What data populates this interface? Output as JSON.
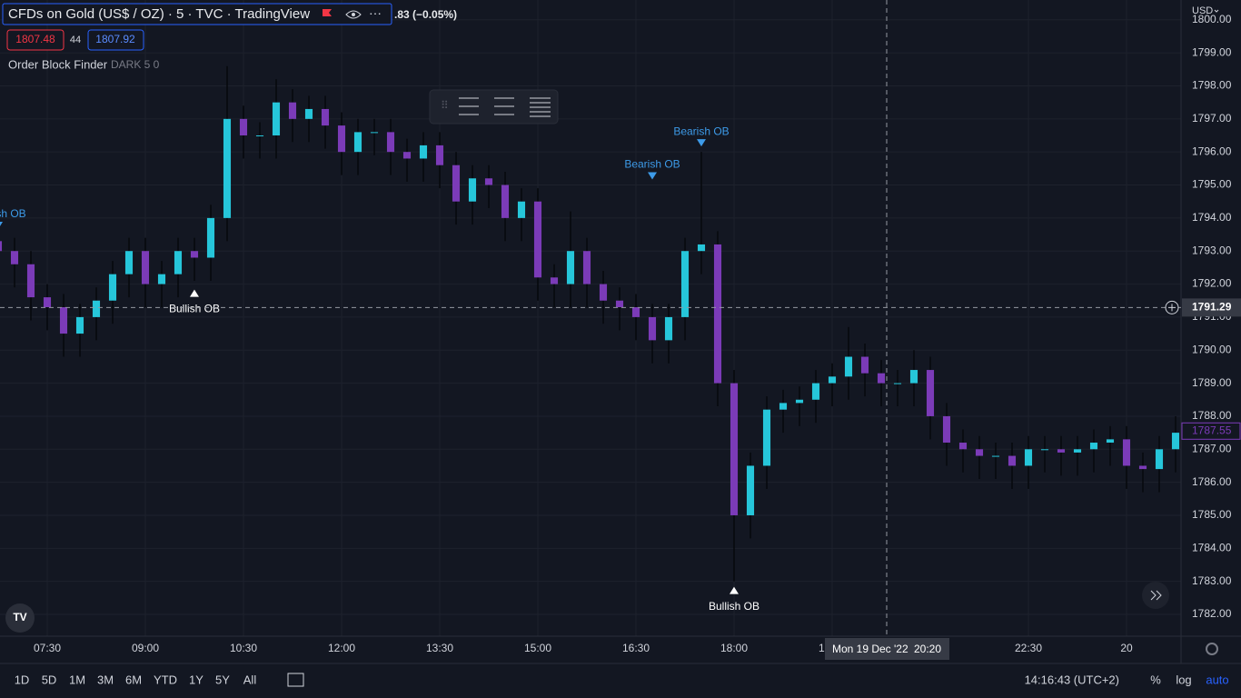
{
  "header": {
    "title": "CFDs on Gold (US$ / OZ) · 5 · TVC · TradingView",
    "change": ".83 (−0.05%)",
    "sell_price": 1807.48,
    "spread": 44,
    "buy_price": 1807.92,
    "currency": "USD"
  },
  "indicator": {
    "name": "Order Block Finder",
    "params": "DARK 5 0"
  },
  "chart_data": {
    "type": "candlestick",
    "grid": true,
    "up_color": "#26c6da",
    "down_color": "#7b3bb8",
    "wick_color": "#06080c",
    "xlim": [
      406.67,
      1490
    ],
    "ylim": [
      1781.34,
      1800.6
    ],
    "xticks": [
      {
        "value": 450,
        "label": "07:30"
      },
      {
        "value": 540,
        "label": "09:00"
      },
      {
        "value": 630,
        "label": "10:30"
      },
      {
        "value": 720,
        "label": "12:00"
      },
      {
        "value": 810,
        "label": "13:30"
      },
      {
        "value": 900,
        "label": "15:00"
      },
      {
        "value": 990,
        "label": "16:30"
      },
      {
        "value": 1080,
        "label": "18:00"
      },
      {
        "value": 1170,
        "label": "19:30"
      },
      {
        "value": 1350,
        "label": "22:30"
      },
      {
        "value": 1440,
        "label": "20"
      }
    ],
    "yticks": [
      {
        "value": 1782,
        "label": "1782.00"
      },
      {
        "value": 1783,
        "label": "1783.00"
      },
      {
        "value": 1784,
        "label": "1784.00"
      },
      {
        "value": 1785,
        "label": "1785.00"
      },
      {
        "value": 1786,
        "label": "1786.00"
      },
      {
        "value": 1787,
        "label": "1787.00"
      },
      {
        "value": 1788,
        "label": "1788.00"
      },
      {
        "value": 1789,
        "label": "1789.00"
      },
      {
        "value": 1790,
        "label": "1790.00"
      },
      {
        "value": 1791,
        "label": "1791.00"
      },
      {
        "value": 1792,
        "label": "1792.00"
      },
      {
        "value": 1793,
        "label": "1793.00"
      },
      {
        "value": 1794,
        "label": "1794.00"
      },
      {
        "value": 1795,
        "label": "1795.00"
      },
      {
        "value": 1796,
        "label": "1796.00"
      },
      {
        "value": 1797,
        "label": "1797.00"
      },
      {
        "value": 1798,
        "label": "1798.00"
      },
      {
        "value": 1799,
        "label": "1799.00"
      },
      {
        "value": 1800,
        "label": "1800.00"
      }
    ],
    "x": [
      405,
      420,
      435,
      450,
      465,
      480,
      495,
      510,
      525,
      540,
      555,
      570,
      585,
      600,
      615,
      630,
      645,
      660,
      675,
      690,
      705,
      720,
      735,
      750,
      765,
      780,
      795,
      810,
      825,
      840,
      855,
      870,
      885,
      900,
      915,
      930,
      945,
      960,
      975,
      990,
      1005,
      1020,
      1035,
      1050,
      1065,
      1080,
      1095,
      1110,
      1125,
      1140,
      1155,
      1170,
      1185,
      1200,
      1215,
      1230,
      1245,
      1260,
      1275,
      1290,
      1305,
      1320,
      1335,
      1350,
      1365,
      1380,
      1395,
      1410,
      1425,
      1440,
      1455,
      1470,
      1485
    ],
    "open": [
      1793.3,
      1793.0,
      1792.6,
      1791.6,
      1791.3,
      1790.5,
      1791.0,
      1791.5,
      1792.3,
      1793.0,
      1792.0,
      1792.3,
      1793.0,
      1792.8,
      1794.0,
      1797.0,
      1796.5,
      1796.5,
      1797.5,
      1797.0,
      1797.3,
      1796.8,
      1796.0,
      1796.6,
      1796.6,
      1796.0,
      1795.8,
      1796.2,
      1795.6,
      1794.5,
      1795.2,
      1795.0,
      1794.0,
      1794.5,
      1792.2,
      1792.0,
      1793.0,
      1792.0,
      1791.5,
      1791.3,
      1791.0,
      1790.3,
      1791.0,
      1793.0,
      1793.2,
      1789.0,
      1785.0,
      1786.5,
      1788.2,
      1788.4,
      1788.5,
      1789.0,
      1789.2,
      1789.8,
      1789.3,
      1789.0,
      1789.0,
      1789.4,
      1788.0,
      1787.2,
      1787.0,
      1786.8,
      1786.8,
      1786.5,
      1787.0,
      1787.0,
      1786.9,
      1787.0,
      1787.2,
      1787.3,
      1786.5,
      1786.4,
      1787.0
    ],
    "high": [
      1793.7,
      1793.4,
      1793.0,
      1792.0,
      1791.7,
      1791.4,
      1791.9,
      1792.7,
      1793.4,
      1793.4,
      1792.7,
      1793.4,
      1793.4,
      1794.4,
      1798.6,
      1797.4,
      1796.9,
      1798.2,
      1797.9,
      1797.7,
      1797.7,
      1797.2,
      1797.0,
      1797.0,
      1797.0,
      1796.4,
      1796.6,
      1796.6,
      1796.0,
      1795.6,
      1795.6,
      1795.4,
      1794.9,
      1794.9,
      1792.6,
      1794.2,
      1793.4,
      1792.4,
      1791.9,
      1791.7,
      1791.4,
      1791.4,
      1793.4,
      1796.0,
      1793.6,
      1789.4,
      1786.9,
      1788.6,
      1788.8,
      1788.9,
      1789.4,
      1789.6,
      1790.7,
      1790.2,
      1789.7,
      1789.4,
      1790.0,
      1789.8,
      1788.4,
      1787.6,
      1787.4,
      1787.2,
      1787.2,
      1787.4,
      1787.4,
      1787.4,
      1787.4,
      1787.6,
      1787.7,
      1787.7,
      1786.9,
      1787.4,
      1788.0
    ],
    "low": [
      1792.3,
      1791.9,
      1790.9,
      1790.6,
      1789.8,
      1789.8,
      1790.3,
      1790.8,
      1791.6,
      1791.3,
      1791.3,
      1791.6,
      1792.1,
      1792.1,
      1793.3,
      1795.8,
      1795.8,
      1795.8,
      1796.3,
      1796.3,
      1796.1,
      1795.3,
      1795.3,
      1795.9,
      1795.3,
      1795.1,
      1795.1,
      1794.9,
      1793.8,
      1793.8,
      1794.3,
      1793.3,
      1793.3,
      1791.5,
      1791.3,
      1791.3,
      1791.3,
      1790.8,
      1790.6,
      1790.3,
      1789.6,
      1789.6,
      1790.3,
      1792.3,
      1788.3,
      1783.0,
      1784.3,
      1785.8,
      1787.5,
      1787.7,
      1787.8,
      1788.3,
      1788.5,
      1788.6,
      1788.3,
      1788.3,
      1788.3,
      1787.3,
      1786.5,
      1786.3,
      1786.1,
      1786.1,
      1785.8,
      1785.8,
      1786.3,
      1786.2,
      1786.2,
      1786.3,
      1786.5,
      1785.8,
      1785.7,
      1785.7,
      1786.3
    ],
    "close": [
      1793.0,
      1792.6,
      1791.6,
      1791.3,
      1790.5,
      1791.0,
      1791.5,
      1792.3,
      1793.0,
      1792.0,
      1792.3,
      1793.0,
      1792.8,
      1794.0,
      1797.0,
      1796.5,
      1796.5,
      1797.5,
      1797.0,
      1797.3,
      1796.8,
      1796.0,
      1796.6,
      1796.6,
      1796.0,
      1795.8,
      1796.2,
      1795.6,
      1794.5,
      1795.2,
      1795.0,
      1794.0,
      1794.5,
      1792.2,
      1792.0,
      1793.0,
      1792.0,
      1791.5,
      1791.3,
      1791.0,
      1790.3,
      1791.0,
      1793.0,
      1793.2,
      1789.0,
      1785.0,
      1786.5,
      1788.2,
      1788.4,
      1788.5,
      1789.0,
      1789.2,
      1789.8,
      1789.3,
      1789.0,
      1789.0,
      1789.4,
      1788.0,
      1787.2,
      1787.0,
      1786.8,
      1786.8,
      1786.5,
      1787.0,
      1787.0,
      1786.9,
      1787.0,
      1787.2,
      1787.3,
      1786.5,
      1786.4,
      1787.0,
      1787.5
    ],
    "annotations": [
      {
        "text": "Bearish OB",
        "x": 405,
        "y": 1793.5,
        "direction": "down",
        "color": "#3d9be9"
      },
      {
        "text": "Bullish OB",
        "x": 585,
        "y": 1792.0,
        "direction": "up",
        "color": "#ffffff"
      },
      {
        "text": "Bearish OB",
        "x": 1005,
        "y": 1795.0,
        "direction": "down",
        "color": "#3d9be9"
      },
      {
        "text": "Bearish OB",
        "x": 1050,
        "y": 1796.0,
        "direction": "down",
        "color": "#3d9be9"
      },
      {
        "text": "Bullish OB",
        "x": 1080,
        "y": 1783.0,
        "direction": "up",
        "color": "#ffffff"
      }
    ],
    "last_price": 1787.55,
    "crosshair": {
      "x": 1220,
      "price": 1791.29,
      "date_label": "Mon 19 Dec '22",
      "time_label": "20:20"
    }
  },
  "bottom_toolbar": {
    "ranges": [
      "1D",
      "5D",
      "1M",
      "3M",
      "6M",
      "YTD",
      "1Y",
      "5Y",
      "All"
    ],
    "clock": "14:16:43 (UTC+2)",
    "percent": "%",
    "log": "log",
    "auto": "auto"
  }
}
